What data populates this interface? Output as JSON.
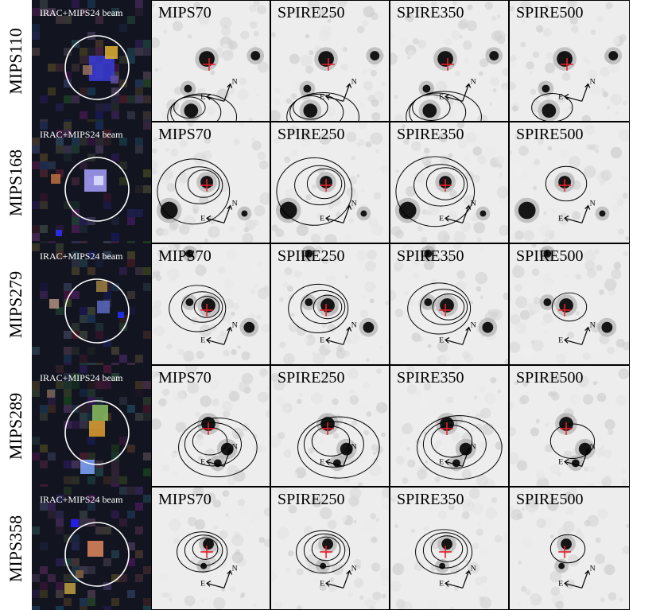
{
  "figure": {
    "columns": [
      {
        "key": "irac",
        "label": "IRAC+MIPS24 beam"
      },
      {
        "key": "mips70",
        "label": "MIPS70"
      },
      {
        "key": "spire250",
        "label": "SPIRE250"
      },
      {
        "key": "spire350",
        "label": "SPIRE350"
      },
      {
        "key": "spire500",
        "label": "SPIRE500"
      }
    ],
    "rows": [
      {
        "label": "MIPS110"
      },
      {
        "label": "MIPS168"
      },
      {
        "label": "MIPS279"
      },
      {
        "label": "MIPS289"
      },
      {
        "label": "MIPS358"
      }
    ],
    "compass": {
      "north": "N",
      "east": "E"
    },
    "colors": {
      "crosshair": "#e8202a",
      "contour": "#000000",
      "beam_circle": "#ffffff",
      "background_image": "#ededed"
    }
  }
}
